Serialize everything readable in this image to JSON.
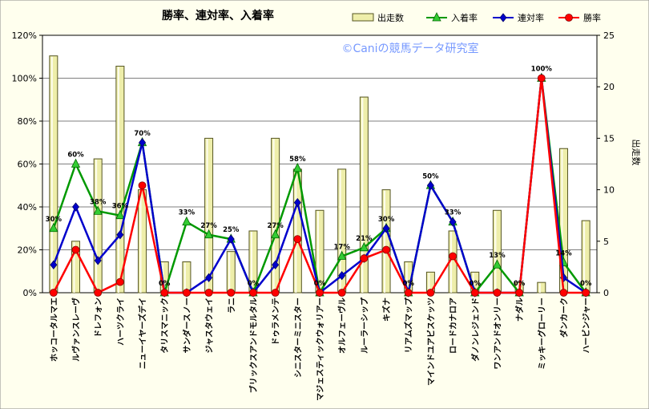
{
  "chart_data": {
    "type": "bar+line",
    "title": "勝率、連対率、入着率",
    "watermark": "©Caniの競馬データ研究室",
    "y2label": "出走数",
    "ylim": [
      0,
      120
    ],
    "y2lim": [
      0,
      25
    ],
    "yticks": [
      "0%",
      "20%",
      "40%",
      "60%",
      "80%",
      "100%",
      "120%"
    ],
    "y2ticks": [
      "0",
      "5",
      "10",
      "15",
      "20",
      "25"
    ],
    "grid": true,
    "legend_position": "top-right",
    "colors": {
      "bars": "#eeeeaa",
      "bar_stroke": "#555522",
      "place": "#009900",
      "place_marker": "#33cc33",
      "top2": "#0000cc",
      "win": "#ff0000",
      "plot_bg": "#ffffff",
      "outer_bg": "#ffffee"
    },
    "categories": [
      "ホッコータルマエ",
      "ルヴァンスレーヴ",
      "ドレフォン",
      "ハーツクライ",
      "ニューイヤーズデイ",
      "タリスマニック",
      "サンダースノー",
      "ジャスタウェイ",
      "ラニ",
      "ブリックスアンドモルタル",
      "ドゥラメンテ",
      "シニスターミニスター",
      "マジェスティックウォリアー",
      "オルフェーヴル",
      "ルーラーシップ",
      "キズナ",
      "リアムズマップ",
      "マインドユアビスケッツ",
      "ロードカナロア",
      "ダノンレジェンド",
      "ワンアンドオンリー",
      "ナダル",
      "ミッキーグローリー",
      "ダンカーク",
      "ハービンジャー"
    ],
    "series": [
      {
        "name": "出走数",
        "type": "bar",
        "axis": "right",
        "values": [
          23,
          5,
          13,
          22,
          10,
          3,
          3,
          15,
          4,
          6,
          15,
          12,
          8,
          12,
          19,
          10,
          3,
          2,
          6,
          2,
          8,
          1,
          1,
          14,
          7
        ]
      },
      {
        "name": "入着率",
        "type": "line",
        "axis": "left",
        "values": [
          30,
          60,
          38,
          36,
          70,
          0,
          33,
          27,
          25,
          0,
          27,
          58,
          0,
          17,
          21,
          30,
          0,
          50,
          33,
          0,
          13,
          0,
          100,
          14,
          0
        ]
      },
      {
        "name": "連対率",
        "type": "line",
        "axis": "left",
        "values": [
          13,
          40,
          15,
          27,
          70,
          0,
          0,
          7,
          25,
          0,
          13,
          42,
          0,
          8,
          16,
          30,
          0,
          50,
          33,
          0,
          0,
          0,
          100,
          7,
          0
        ]
      },
      {
        "name": "勝率",
        "type": "line",
        "axis": "left",
        "values": [
          0,
          20,
          0,
          5,
          50,
          0,
          0,
          0,
          0,
          0,
          0,
          25,
          0,
          0,
          16,
          20,
          0,
          0,
          17,
          0,
          0,
          0,
          100,
          0,
          0
        ]
      }
    ],
    "place_labels": [
      "30%",
      "60%",
      "38%",
      "36%",
      "70%",
      "0%",
      "33%",
      "27%",
      "25%",
      "0%",
      "27%",
      "58%",
      "0%",
      "17%",
      "21%",
      "30%",
      "0%",
      "50%",
      "33%",
      "0%",
      "13%",
      "0%",
      "100%",
      "14%",
      "0%"
    ]
  }
}
